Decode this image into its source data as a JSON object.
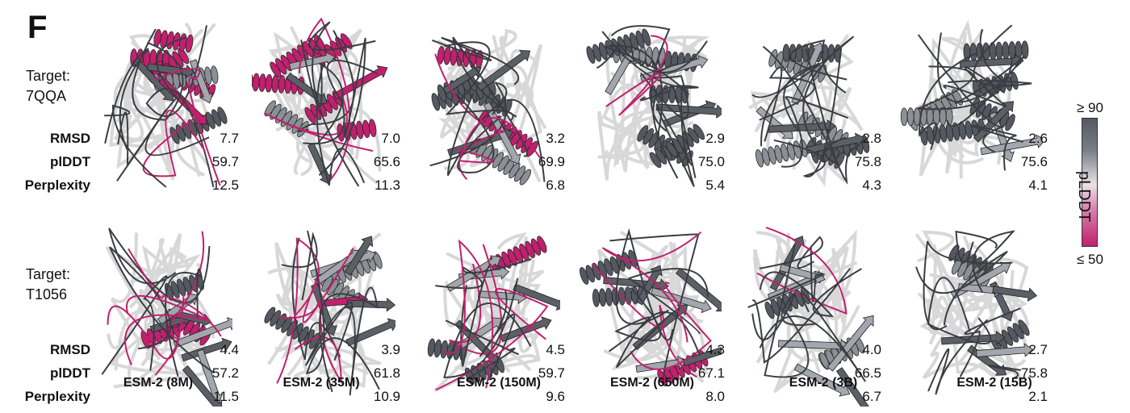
{
  "figure": {
    "panel_letter": "F",
    "row_labels": {
      "rmsd": "RMSD",
      "plddt": "plDDT",
      "perplexity": "Perplexity"
    },
    "models": [
      "ESM-2 (8M)",
      "ESM-2 (35M)",
      "ESM-2 (150M)",
      "ESM-2 (650M)",
      "ESM-2 (3B)",
      "ESM-2 (15B)"
    ],
    "targets": [
      {
        "label_line1": "Target:",
        "label_line2": "7QQA",
        "rmsd": [
          "7.7",
          "7.0",
          "3.2",
          "2.9",
          "2.8",
          "2.6"
        ],
        "plddt": [
          "59.7",
          "65.6",
          "69.9",
          "75.0",
          "75.8",
          "75.6"
        ],
        "perplexity": [
          "12.5",
          "11.3",
          "6.8",
          "5.4",
          "4.3",
          "4.1"
        ]
      },
      {
        "label_line1": "Target:",
        "label_line2": "T1056",
        "rmsd": [
          "4.4",
          "3.9",
          "4.5",
          "4.3",
          "4.0",
          "2.7"
        ],
        "plddt": [
          "57.2",
          "61.8",
          "59.7",
          "67.1",
          "66.5",
          "75.8"
        ],
        "perplexity": [
          "11.5",
          "10.9",
          "9.6",
          "8.0",
          "6.7",
          "2.1"
        ]
      }
    ],
    "colorbar": {
      "title": "pLDDT",
      "top_label": "≥ 90",
      "bottom_label": "≤ 50",
      "colors": {
        "high": "#545860",
        "mid": "#e9e3e6",
        "low": "#c0206e"
      }
    }
  }
}
